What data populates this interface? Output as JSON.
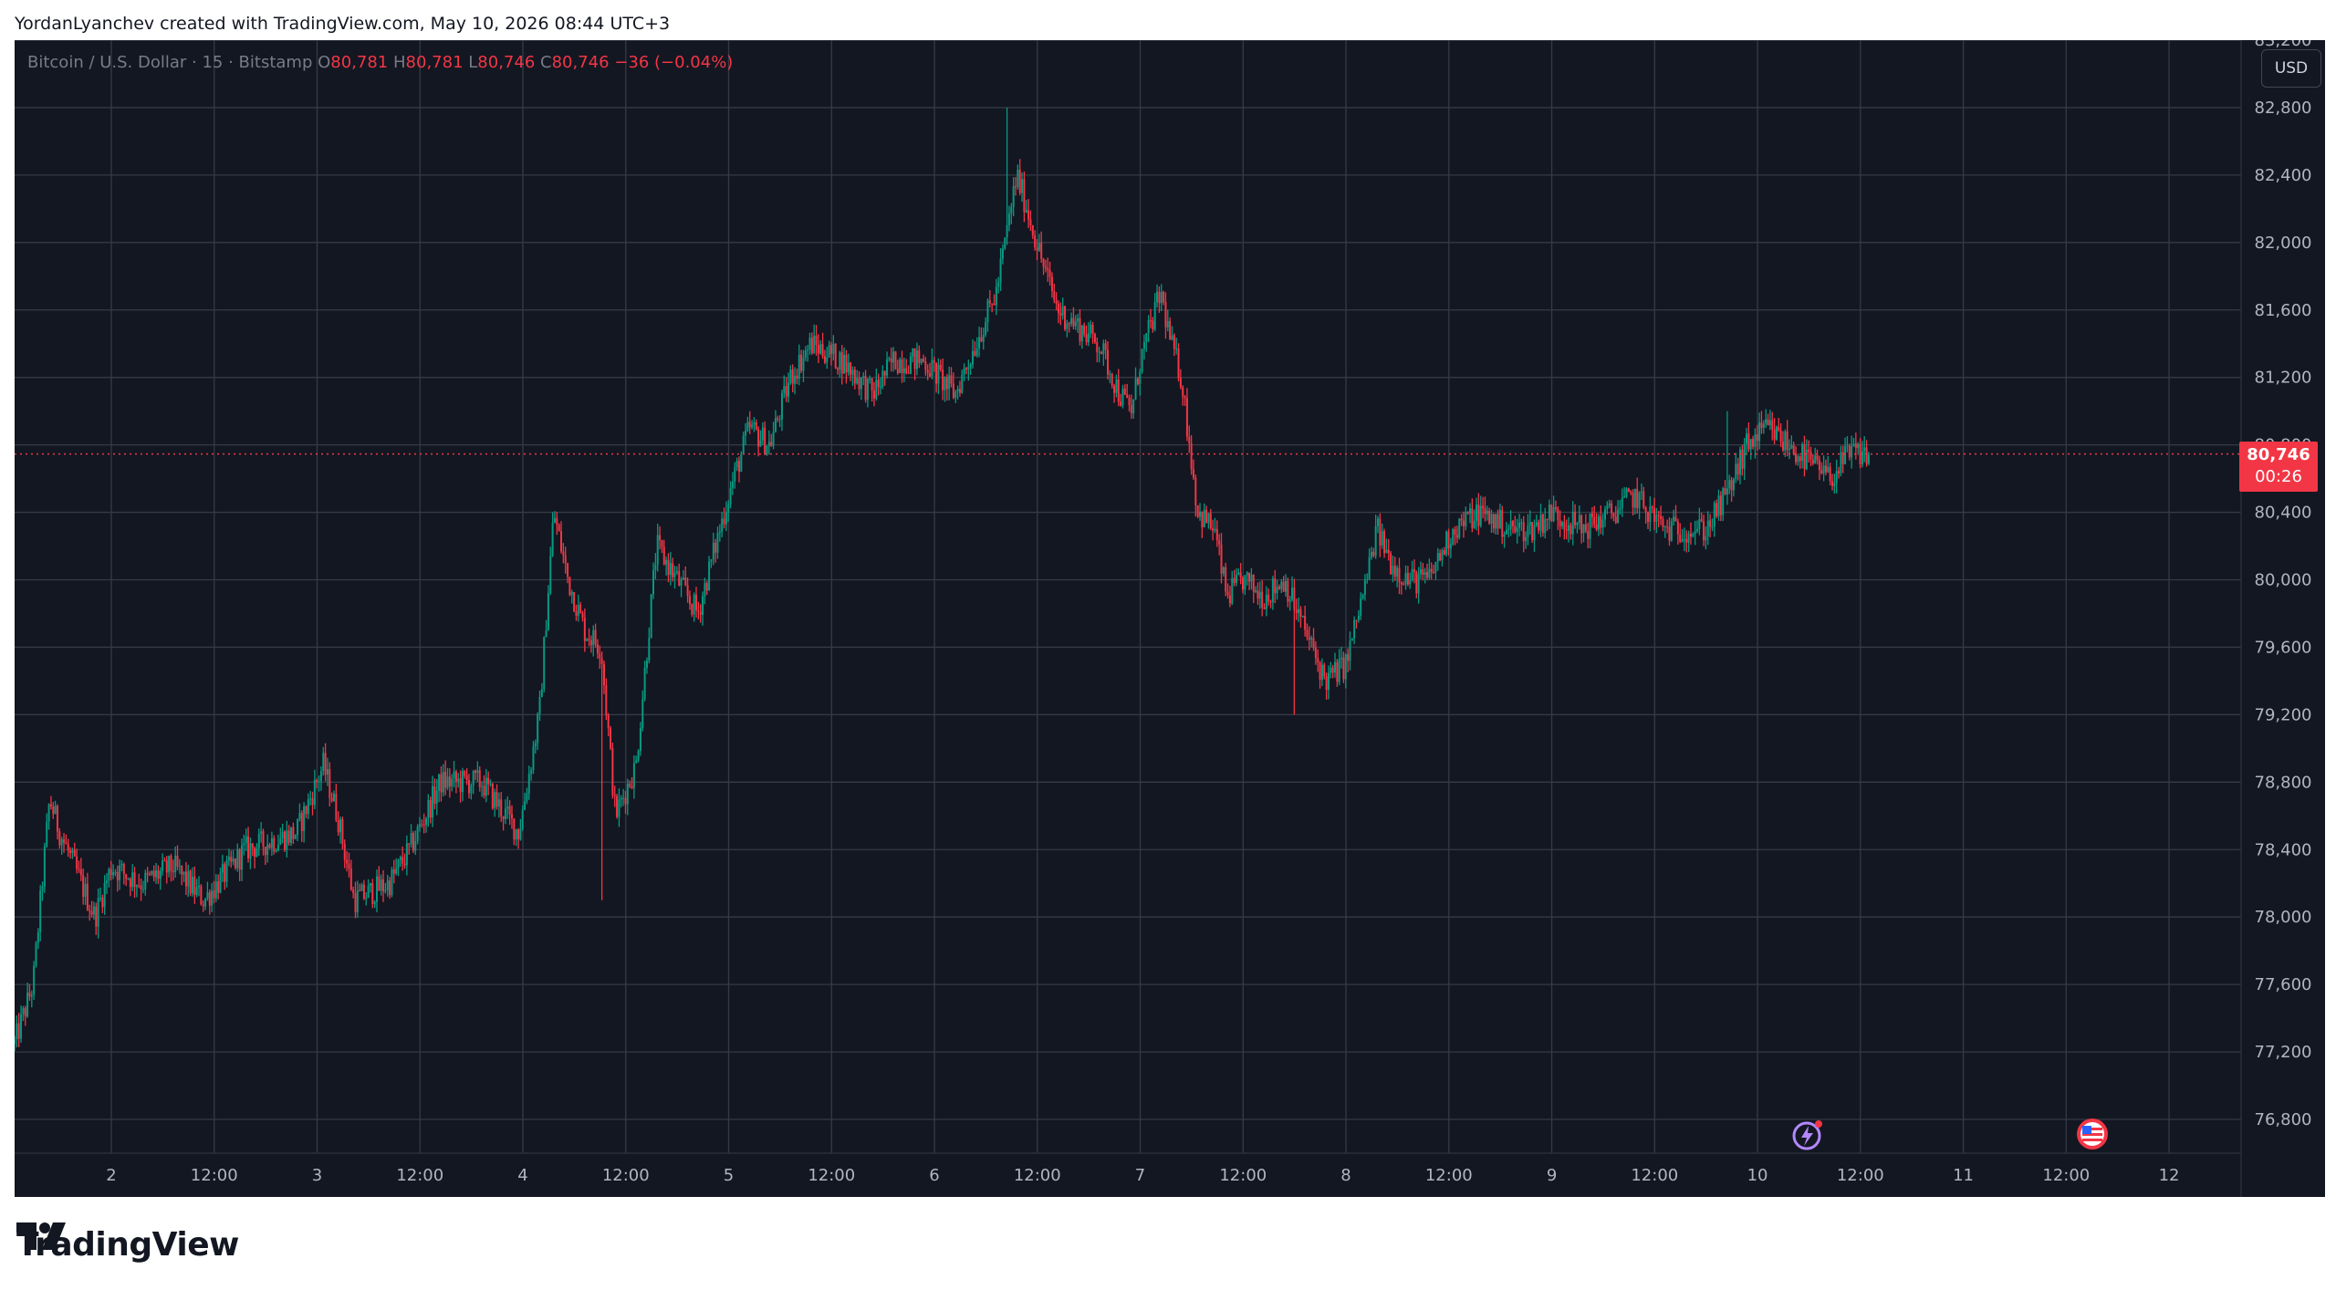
{
  "header": {
    "attribution": "YordanLyanchev created with TradingView.com, May 10, 2026 08:44 UTC+3"
  },
  "legend": {
    "symbol": "Bitcoin / U.S. Dollar · 15 · Bitstamp",
    "open_label": "O",
    "open": "80,781",
    "high_label": "H",
    "high": "80,781",
    "low_label": "L",
    "low": "80,746",
    "close_label": "C",
    "close": "80,746",
    "change": "−36 (−0.04%)"
  },
  "currency_button": "USD",
  "last_price": {
    "price": "80,746",
    "countdown": "00:26"
  },
  "footer": {
    "brand": "TradingView"
  },
  "colors": {
    "up": "#089981",
    "down": "#f23645",
    "background": "#131722",
    "grid": "#363a45"
  },
  "icons": {
    "events": [
      "lightning-event-icon",
      "us-flag-event-icon"
    ]
  },
  "chart_data": {
    "type": "candlestick",
    "symbol": "BTCUSD",
    "interval": "15",
    "ylim": [
      76600,
      83200
    ],
    "y_ticks": [
      "76,800",
      "77,200",
      "77,600",
      "78,000",
      "78,400",
      "78,800",
      "79,200",
      "79,600",
      "80,000",
      "80,400",
      "80,800",
      "81,200",
      "81,600",
      "82,000",
      "82,400",
      "82,800",
      "83,200"
    ],
    "x_ticks": [
      "2",
      "12:00",
      "3",
      "12:00",
      "4",
      "12:00",
      "5",
      "12:00",
      "6",
      "12:00",
      "7",
      "12:00",
      "8",
      "12:00",
      "9",
      "12:00",
      "10",
      "12:00",
      "11",
      "12:00",
      "12"
    ],
    "x_tick_times": [
      1,
      1.5,
      2,
      2.5,
      3,
      3.5,
      4,
      4.5,
      5,
      5.5,
      6,
      6.5,
      7,
      7.5,
      8,
      8.5,
      9,
      9.5,
      10,
      10.5,
      11
    ],
    "xlim": [
      0.53,
      11.35
    ],
    "last_price": 80746,
    "anchors": [
      [
        0.53,
        77250
      ],
      [
        0.62,
        77600
      ],
      [
        0.7,
        78700
      ],
      [
        0.75,
        78500
      ],
      [
        0.82,
        78300
      ],
      [
        0.92,
        78000
      ],
      [
        1.0,
        78300
      ],
      [
        1.15,
        78200
      ],
      [
        1.3,
        78300
      ],
      [
        1.45,
        78100
      ],
      [
        1.65,
        78400
      ],
      [
        1.9,
        78500
      ],
      [
        2.03,
        78900
      ],
      [
        2.1,
        78600
      ],
      [
        2.18,
        78100
      ],
      [
        2.35,
        78200
      ],
      [
        2.45,
        78400
      ],
      [
        2.6,
        78800
      ],
      [
        2.8,
        78800
      ],
      [
        2.98,
        78500
      ],
      [
        3.08,
        79200
      ],
      [
        3.15,
        80400
      ],
      [
        3.22,
        80000
      ],
      [
        3.3,
        79700
      ],
      [
        3.38,
        79600
      ],
      [
        3.45,
        78600
      ],
      [
        3.55,
        78900
      ],
      [
        3.65,
        80200
      ],
      [
        3.75,
        80000
      ],
      [
        3.85,
        79800
      ],
      [
        4.0,
        80500
      ],
      [
        4.1,
        80900
      ],
      [
        4.2,
        80800
      ],
      [
        4.3,
        81200
      ],
      [
        4.4,
        81400
      ],
      [
        4.55,
        81300
      ],
      [
        4.7,
        81100
      ],
      [
        4.8,
        81300
      ],
      [
        4.95,
        81300
      ],
      [
        5.1,
        81100
      ],
      [
        5.2,
        81400
      ],
      [
        5.3,
        81700
      ],
      [
        5.4,
        82400
      ],
      [
        5.45,
        82200
      ],
      [
        5.52,
        81900
      ],
      [
        5.6,
        81600
      ],
      [
        5.7,
        81500
      ],
      [
        5.8,
        81400
      ],
      [
        5.9,
        81100
      ],
      [
        5.96,
        81000
      ],
      [
        6.0,
        81300
      ],
      [
        6.05,
        81500
      ],
      [
        6.1,
        81700
      ],
      [
        6.15,
        81400
      ],
      [
        6.2,
        81200
      ],
      [
        6.28,
        80400
      ],
      [
        6.36,
        80300
      ],
      [
        6.42,
        79900
      ],
      [
        6.5,
        80000
      ],
      [
        6.6,
        79900
      ],
      [
        6.7,
        80000
      ],
      [
        6.8,
        79700
      ],
      [
        6.9,
        79400
      ],
      [
        7.0,
        79500
      ],
      [
        7.1,
        80000
      ],
      [
        7.15,
        80300
      ],
      [
        7.22,
        80100
      ],
      [
        7.3,
        80000
      ],
      [
        7.4,
        80000
      ],
      [
        7.52,
        80300
      ],
      [
        7.65,
        80400
      ],
      [
        7.8,
        80300
      ],
      [
        7.9,
        80300
      ],
      [
        8.0,
        80400
      ],
      [
        8.15,
        80300
      ],
      [
        8.3,
        80400
      ],
      [
        8.4,
        80500
      ],
      [
        8.55,
        80300
      ],
      [
        8.75,
        80300
      ],
      [
        8.85,
        80500
      ],
      [
        8.95,
        80800
      ],
      [
        9.05,
        80900
      ],
      [
        9.15,
        80800
      ],
      [
        9.25,
        80700
      ],
      [
        9.35,
        80600
      ],
      [
        9.45,
        80750
      ],
      [
        9.55,
        80746
      ]
    ],
    "spikes": [
      [
        5.35,
        82800
      ],
      [
        6.07,
        81700
      ],
      [
        8.85,
        81000
      ],
      [
        3.38,
        78100
      ],
      [
        6.75,
        79200
      ]
    ]
  }
}
